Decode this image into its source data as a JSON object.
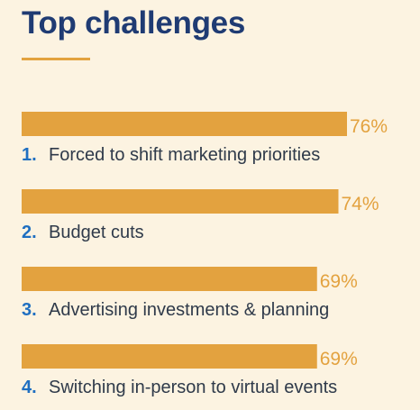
{
  "title": "Top challenges",
  "colors": {
    "background": "#fcf3e1",
    "bar": "#e3a23f",
    "title": "#1f3b73",
    "number": "#1f6fc1",
    "label": "#2f3a4a"
  },
  "chart_data": {
    "type": "bar",
    "orientation": "horizontal",
    "title": "Top challenges",
    "categories": [
      "Forced to shift marketing priorities",
      "Budget cuts",
      "Advertising investments & planning",
      "Switching in-person to virtual events"
    ],
    "numbers": [
      "1.",
      "2.",
      "3.",
      "4."
    ],
    "values": [
      76,
      74,
      69,
      69
    ],
    "value_labels": [
      "76%",
      "74%",
      "69%",
      "69%"
    ],
    "xlim": [
      0,
      100
    ],
    "grid": false,
    "legend": "none"
  }
}
